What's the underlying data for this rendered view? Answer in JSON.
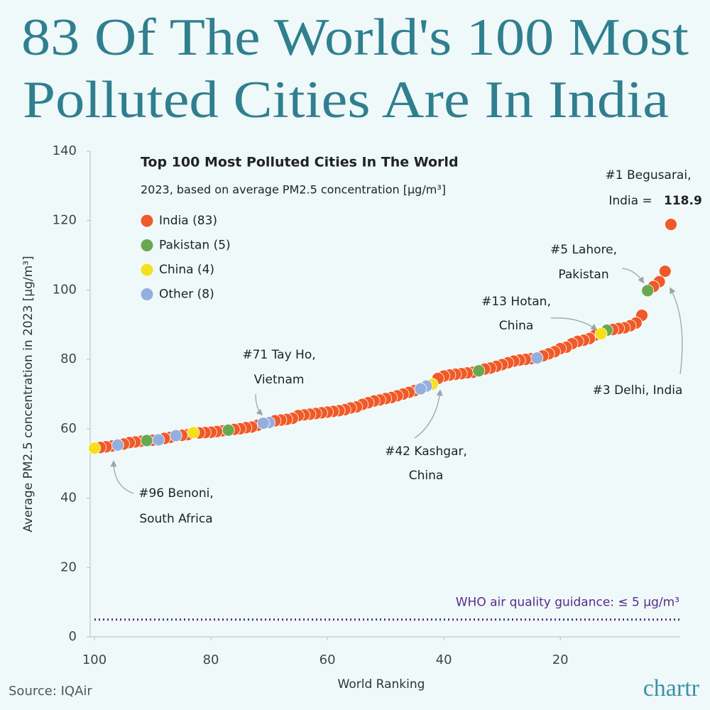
{
  "chart_data": {
    "type": "scatter",
    "title_lines": [
      "83 Of The World's 100 Most",
      "Polluted Cities Are In India"
    ],
    "subtitle": "Top 100 Most Polluted Cities In The World",
    "caption": "2023, based on average PM2.5 concentration [μg/m³]",
    "y_label": "Average PM2.5 concentration in 2023 [μg/m³]",
    "x_label": "World Ranking",
    "source": "Source: IQAir",
    "logo": "chartr",
    "xlim": [
      100,
      0
    ],
    "xticks": [
      100,
      80,
      60,
      40,
      20
    ],
    "ylim": [
      0,
      140
    ],
    "yticks": [
      0,
      20,
      40,
      60,
      80,
      100,
      120,
      140
    ],
    "series": [
      {
        "name": "India (83)",
        "color": "#f05a28",
        "x": [
          1,
          2,
          3,
          4,
          6,
          7,
          8,
          9,
          10,
          11,
          14,
          15,
          16,
          17,
          18,
          19,
          20,
          21,
          22,
          23,
          25,
          26,
          27,
          28,
          29,
          30,
          31,
          32,
          33,
          35,
          36,
          37,
          38,
          39,
          40,
          41,
          45,
          46,
          47,
          48,
          49,
          50,
          51,
          52,
          53,
          54,
          55,
          56,
          57,
          58,
          59,
          60,
          61,
          62,
          63,
          64,
          65,
          66,
          67,
          68,
          69,
          72,
          73,
          74,
          75,
          76,
          78,
          79,
          80,
          81,
          82,
          84,
          85,
          87,
          88,
          90,
          92,
          93,
          94,
          95,
          97,
          98,
          99
        ],
        "values": [
          118.9,
          105.4,
          102.4,
          101,
          92.7,
          90.5,
          89.7,
          89.1,
          88.9,
          88.6,
          87,
          86,
          85.5,
          85.2,
          84.5,
          83.5,
          83.1,
          82.2,
          81.6,
          81,
          80.2,
          80,
          79.8,
          79.5,
          79,
          78.5,
          78,
          77.5,
          77.2,
          76.3,
          76.1,
          75.9,
          75.7,
          75.5,
          75.2,
          74.5,
          71,
          70.5,
          70,
          69.5,
          69,
          68.7,
          68.3,
          68,
          67.5,
          67,
          66.3,
          66,
          65.5,
          65.2,
          65,
          64.8,
          64.6,
          64.4,
          64.2,
          64,
          63.8,
          63,
          62.7,
          62.5,
          62.3,
          61,
          60.5,
          60.3,
          60,
          59.8,
          59.4,
          59.2,
          59,
          58.9,
          58.8,
          58.3,
          58.1,
          57.5,
          57.2,
          56.7,
          56.4,
          56.2,
          56,
          55.6,
          55,
          54.8,
          54.6
        ]
      },
      {
        "name": "Pakistan (5)",
        "color": "#6aa84f",
        "x": [
          5,
          12,
          34,
          77,
          91
        ],
        "values": [
          99.8,
          88.4,
          76.7,
          59.6,
          56.6
        ]
      },
      {
        "name": "China (4)",
        "color": "#f5e11b",
        "x": [
          13,
          42,
          83,
          100
        ],
        "values": [
          87.4,
          72.8,
          58.9,
          54.4
        ]
      },
      {
        "name": "Other (8)",
        "color": "#94aede",
        "x": [
          24,
          43,
          44,
          70,
          71,
          86,
          89,
          96
        ],
        "values": [
          80.4,
          72.3,
          71.5,
          61.8,
          61.6,
          58,
          56.8,
          55.3
        ]
      }
    ],
    "who_guideline": {
      "value": 5,
      "label": "WHO air quality guidance: ≤ 5 μg/m³",
      "color": "#5b2a8c"
    },
    "annotations": [
      {
        "lines": [
          "#1 Begusarai,",
          "India ="
        ],
        "value": 118.9
      },
      {
        "lines": [
          "#5 Lahore,",
          "Pakistan"
        ]
      },
      {
        "lines": [
          "#13 Hotan,",
          "China"
        ]
      },
      {
        "lines": [
          "#3  Delhi, India"
        ]
      },
      {
        "lines": [
          "#71 Tay Ho,",
          "Vietnam"
        ]
      },
      {
        "lines": [
          "#42 Kashgar,",
          "China"
        ]
      },
      {
        "lines": [
          "#96 Benoni,",
          "South Africa"
        ]
      }
    ]
  }
}
